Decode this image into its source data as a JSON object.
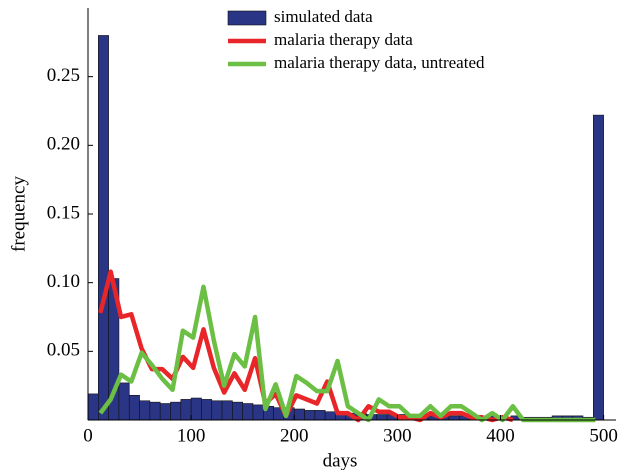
{
  "chart_data": {
    "type": "histogram",
    "xlabel": "days",
    "ylabel": "frequency",
    "name": "simulated data",
    "color": "#2b3585",
    "bins": [
      0,
      10,
      20,
      30,
      40,
      50,
      60,
      70,
      80,
      90,
      100,
      110,
      120,
      130,
      140,
      150,
      160,
      170,
      180,
      190,
      200,
      210,
      220,
      230,
      240,
      250,
      260,
      270,
      280,
      290,
      300,
      310,
      320,
      330,
      340,
      350,
      360,
      370,
      380,
      390,
      400,
      410,
      420,
      430,
      440,
      450,
      460,
      470,
      480,
      490,
      500
    ],
    "counts": [
      0.019,
      0.28,
      0.103,
      0.027,
      0.018,
      0.014,
      0.013,
      0.012,
      0.013,
      0.015,
      0.016,
      0.015,
      0.014,
      0.014,
      0.013,
      0.012,
      0.011,
      0.01,
      0.009,
      0.009,
      0.008,
      0.007,
      0.007,
      0.006,
      0.006,
      0.005,
      0.005,
      0.004,
      0.004,
      0.004,
      0.004,
      0.004,
      0.003,
      0.003,
      0.003,
      0.003,
      0.003,
      0.003,
      0.003,
      0.003,
      0.002,
      0.003,
      0.002,
      0.002,
      0.002,
      0.003,
      0.003,
      0.003,
      0.002,
      0.222
    ],
    "series": [
      {
        "name": "malaria therapy data",
        "color": "#e8262a",
        "x": [
          12,
          22,
          32,
          42,
          52,
          62,
          72,
          82,
          92,
          102,
          112,
          122,
          132,
          142,
          152,
          162,
          172,
          182,
          192,
          202,
          212,
          222,
          232,
          242,
          252,
          262,
          272,
          282,
          292,
          302,
          312,
          322,
          332,
          342,
          352,
          362,
          372,
          382,
          392,
          402,
          412
        ],
        "values": [
          0.078,
          0.108,
          0.075,
          0.077,
          0.052,
          0.037,
          0.037,
          0.03,
          0.046,
          0.038,
          0.066,
          0.038,
          0.02,
          0.034,
          0.022,
          0.045,
          0.012,
          0.019,
          0.003,
          0.018,
          0.015,
          0.012,
          0.028,
          0.005,
          0.005,
          0,
          0.01,
          0.006,
          0.006,
          0.002,
          0.002,
          0,
          0.005,
          0.002,
          0.005,
          0.005,
          0.002,
          0.002,
          0,
          0.002,
          0
        ]
      },
      {
        "name": "malaria therapy data, untreated",
        "color": "#6cbf45",
        "x": [
          12,
          22,
          32,
          42,
          52,
          62,
          72,
          82,
          92,
          102,
          112,
          122,
          132,
          142,
          152,
          162,
          172,
          182,
          192,
          202,
          212,
          222,
          232,
          242,
          252,
          262,
          272,
          282,
          292,
          302,
          312,
          322,
          332,
          342,
          352,
          362,
          372,
          382,
          392,
          402,
          412,
          422,
          432,
          442,
          452,
          462,
          472,
          482,
          492
        ],
        "values": [
          0.005,
          0.015,
          0.033,
          0.028,
          0.049,
          0.04,
          0.03,
          0.022,
          0.065,
          0.06,
          0.097,
          0.058,
          0.025,
          0.048,
          0.039,
          0.075,
          0.008,
          0.026,
          0.003,
          0.032,
          0.027,
          0.021,
          0.021,
          0.043,
          0.01,
          0.005,
          0,
          0.015,
          0.01,
          0.01,
          0.003,
          0.003,
          0.01,
          0.003,
          0.01,
          0.01,
          0.005,
          0,
          0.005,
          0,
          0.01,
          0,
          0,
          0,
          0,
          0,
          0,
          0,
          0
        ]
      }
    ],
    "xlim": [
      0,
      512
    ],
    "ylim": [
      0,
      0.3
    ],
    "xticks": [
      0,
      100,
      200,
      300,
      400,
      500
    ],
    "yticks": [
      0.05,
      {
        "value": 0.1,
        "label": "0.10"
      },
      0.15,
      {
        "value": 0.2,
        "label": "0.20"
      },
      0.25
    ],
    "legend": "top"
  }
}
